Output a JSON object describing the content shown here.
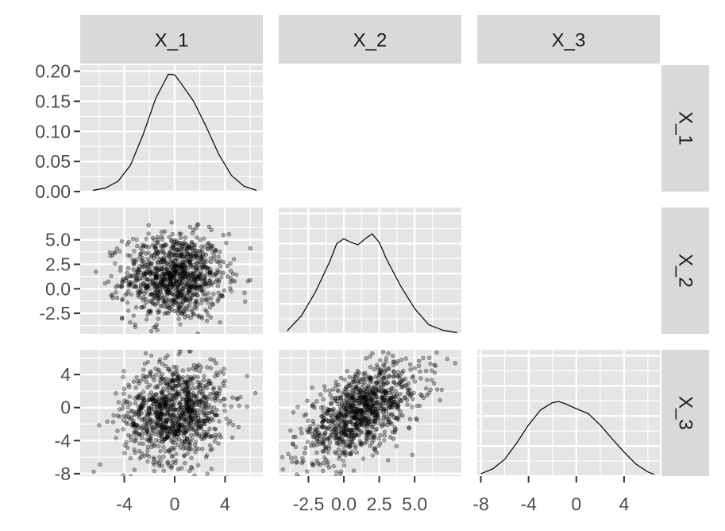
{
  "chart_data": {
    "type": "scatter",
    "subtype": "pairs-matrix",
    "title": "",
    "variables": [
      "X_1",
      "X_2",
      "X_3"
    ],
    "n_points": 1000,
    "grid": true,
    "panel_background": "#e5e5e5",
    "strip_background": "#d9d9d9",
    "grid_color": "#ffffff",
    "point_color": "#000000",
    "point_alpha": 0.3,
    "axes": {
      "X_1": {
        "range": [
          -7.5,
          7.0
        ],
        "ticks": [
          -4,
          0,
          4
        ],
        "tick_labels": [
          "-4",
          "0",
          "4"
        ]
      },
      "X_2": {
        "range": [
          -4.6,
          8.3
        ],
        "ticks": [
          -2.5,
          0.0,
          2.5,
          5.0
        ],
        "tick_labels": [
          "-2.5",
          "0.0",
          "2.5",
          "5.0"
        ]
      },
      "X_3": {
        "range": [
          -8.3,
          7.0
        ],
        "ticks": [
          -8,
          -4,
          0,
          4
        ],
        "tick_labels": [
          "-8",
          "-4",
          "0",
          "4"
        ]
      }
    },
    "density_axis": {
      "range": [
        0,
        0.21
      ],
      "ticks": [
        0.0,
        0.05,
        0.1,
        0.15,
        0.2
      ],
      "tick_labels": [
        "0.00",
        "0.05",
        "0.10",
        "0.15",
        "0.20"
      ]
    },
    "densities": {
      "X_1": {
        "x": [
          -6.5,
          -5.5,
          -4.5,
          -3.5,
          -2.5,
          -1.5,
          -0.5,
          0.0,
          0.5,
          1.5,
          2.5,
          3.5,
          4.5,
          5.5,
          6.5
        ],
        "y": [
          0.002,
          0.006,
          0.017,
          0.044,
          0.095,
          0.155,
          0.195,
          0.194,
          0.18,
          0.15,
          0.108,
          0.062,
          0.027,
          0.009,
          0.002
        ]
      },
      "X_2": {
        "x": [
          -4.0,
          -3.0,
          -2.0,
          -1.0,
          -0.5,
          0.0,
          0.5,
          1.0,
          1.5,
          2.0,
          2.5,
          3.0,
          4.0,
          5.0,
          6.0,
          7.0,
          8.0
        ],
        "y": [
          0.005,
          0.03,
          0.07,
          0.12,
          0.15,
          0.158,
          0.152,
          0.148,
          0.158,
          0.166,
          0.152,
          0.125,
          0.08,
          0.042,
          0.015,
          0.006,
          0.002
        ]
      },
      "X_3": {
        "x": [
          -8.0,
          -7.0,
          -6.0,
          -5.0,
          -4.0,
          -3.0,
          -2.0,
          -1.5,
          -1.0,
          0.0,
          1.0,
          2.0,
          3.0,
          4.0,
          5.0,
          6.0,
          6.5
        ],
        "y": [
          0.004,
          0.012,
          0.028,
          0.055,
          0.085,
          0.11,
          0.122,
          0.124,
          0.121,
          0.112,
          0.104,
          0.085,
          0.062,
          0.04,
          0.02,
          0.007,
          0.003
        ]
      }
    },
    "scatter_params": {
      "X_2_vs_X_1": {
        "mean_x": 0.0,
        "sd_x": 2.0,
        "mean_y": 1.2,
        "sd_y": 2.2,
        "correlation": 0.0
      },
      "X_3_vs_X_1": {
        "mean_x": 0.0,
        "sd_x": 2.0,
        "mean_y": -0.5,
        "sd_y": 3.0,
        "correlation": 0.1
      },
      "X_3_vs_X_2": {
        "mean_x": 1.2,
        "sd_x": 2.2,
        "mean_y": -0.5,
        "sd_y": 3.0,
        "correlation": 0.6
      }
    }
  }
}
